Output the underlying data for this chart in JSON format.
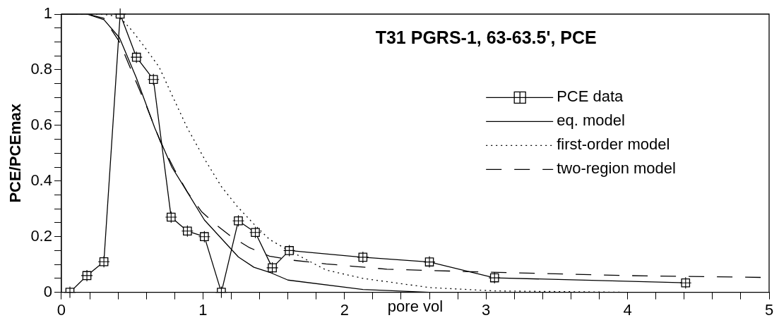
{
  "chart_data": {
    "type": "line",
    "title": "T31 PGRS-1, 63-63.5', PCE",
    "xlabel": "pore vol",
    "ylabel": "PCE/PCEmax",
    "xlim": [
      0,
      5
    ],
    "ylim": [
      0,
      1
    ],
    "xticks": [
      0,
      {
        "value": 0.2,
        "label": null
      },
      {
        "value": 0.4,
        "label": null
      },
      {
        "value": 0.6,
        "label": null
      },
      {
        "value": 0.8,
        "label": null
      },
      1,
      {
        "value": 1.2,
        "label": null
      },
      {
        "value": 1.4,
        "label": null
      },
      {
        "value": 1.6,
        "label": null
      },
      {
        "value": 1.8,
        "label": null
      },
      2,
      {
        "value": 2.2,
        "label": null
      },
      {
        "value": 2.4,
        "label": null
      },
      {
        "value": 2.6,
        "label": null
      },
      {
        "value": 2.8,
        "label": null
      },
      3,
      {
        "value": 3.2,
        "label": null
      },
      {
        "value": 3.4,
        "label": null
      },
      {
        "value": 3.6,
        "label": null
      },
      {
        "value": 3.8,
        "label": null
      },
      4,
      {
        "value": 4.2,
        "label": null
      },
      {
        "value": 4.4,
        "label": null
      },
      {
        "value": 4.6,
        "label": null
      },
      {
        "value": 4.8,
        "label": null
      },
      5
    ],
    "yticks": [
      0,
      {
        "value": 0.05,
        "label": null
      },
      {
        "value": 0.1,
        "label": null
      },
      {
        "value": 0.15,
        "label": null
      },
      0.2,
      {
        "value": 0.25,
        "label": null
      },
      {
        "value": 0.3,
        "label": null
      },
      {
        "value": 0.35,
        "label": null
      },
      0.4,
      {
        "value": 0.45,
        "label": null
      },
      {
        "value": 0.5,
        "label": null
      },
      {
        "value": 0.55,
        "label": null
      },
      0.6,
      {
        "value": 0.65,
        "label": null
      },
      {
        "value": 0.7,
        "label": null
      },
      {
        "value": 0.75,
        "label": null
      },
      0.8,
      {
        "value": 0.85,
        "label": null
      },
      {
        "value": 0.9,
        "label": null
      },
      {
        "value": 0.95,
        "label": null
      },
      1
    ],
    "grid": false,
    "legend": "right",
    "series": [
      {
        "name": "PCE data",
        "color": "#000000",
        "marker": "square",
        "line_style": "solid",
        "x": [
          0.06,
          0.18,
          0.3,
          0.415,
          0.53,
          0.65,
          0.775,
          0.89,
          1.01,
          1.13,
          1.25,
          1.37,
          1.49,
          1.61,
          2.13,
          2.6,
          3.06,
          4.41
        ],
        "values": [
          0,
          0.06,
          0.11,
          1,
          0.845,
          0.765,
          0.27,
          0.22,
          0.2,
          0,
          0.257,
          0.215,
          0.088,
          0.15,
          0.126,
          0.109,
          0.052,
          0.034
        ]
      },
      {
        "name": "eq. model",
        "color": "#000000",
        "marker": "none",
        "line_style": "solid",
        "x": [
          0,
          0.18,
          0.3,
          0.41,
          0.53,
          0.66,
          0.78,
          0.89,
          1.01,
          1.25,
          1.36,
          1.48,
          1.6,
          2.13,
          2.6,
          5
        ],
        "values": [
          1,
          1,
          0.98,
          0.915,
          0.77,
          0.59,
          0.45,
          0.36,
          0.26,
          0.127,
          0.09,
          0.07,
          0.044,
          0.01,
          0,
          0
        ]
      },
      {
        "name": "first-order model",
        "color": "#000000",
        "marker": "none",
        "line_style": "dotted",
        "x": [
          0,
          0.29,
          0.41,
          0.5,
          0.59,
          0.69,
          0.78,
          0.89,
          1.01,
          1.13,
          1.24,
          1.36,
          1.47,
          1.59,
          1.87,
          2.13,
          2.6,
          3.06,
          4,
          5
        ],
        "values": [
          1,
          1,
          0.99,
          0.94,
          0.88,
          0.81,
          0.71,
          0.59,
          0.48,
          0.38,
          0.31,
          0.245,
          0.19,
          0.155,
          0.08,
          0.05,
          0.017,
          0.005,
          0,
          0
        ]
      },
      {
        "name": "two-region model",
        "color": "#000000",
        "marker": "none",
        "line_style": "dashed",
        "x": [
          0,
          0.18,
          0.3,
          0.41,
          0.5,
          0.6,
          0.7,
          0.8,
          0.89,
          0.99,
          1.1,
          1.2,
          1.33,
          1.47,
          1.64,
          1.87,
          2.3,
          2.83,
          4,
          5
        ],
        "values": [
          1,
          1,
          0.985,
          0.9,
          0.79,
          0.67,
          0.54,
          0.44,
          0.36,
          0.29,
          0.24,
          0.2,
          0.16,
          0.13,
          0.115,
          0.102,
          0.083,
          0.075,
          0.06,
          0.053
        ]
      }
    ]
  }
}
